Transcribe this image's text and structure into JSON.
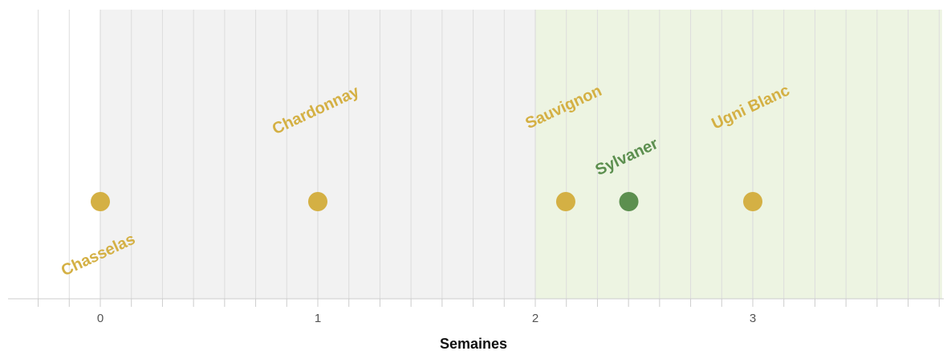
{
  "chart_data": {
    "type": "scatter",
    "xlabel": "Semaines",
    "xlim": [
      -0.42,
      3.87
    ],
    "x_ticks": [
      "0",
      "1",
      "2",
      "3"
    ],
    "grid": true,
    "bands": [
      {
        "from": 0,
        "to": 2,
        "color": "#f2f2f2"
      },
      {
        "from": 2,
        "to": 3.87,
        "color": "#edf4e2"
      }
    ],
    "colors": {
      "gold": "#d4b044",
      "green": "#5c8f4f",
      "grid": "#dddddd",
      "axis": "#cccccc"
    },
    "points": [
      {
        "label": "Chasselas",
        "x": 0.0,
        "color": "#d4b044",
        "label_side": "below"
      },
      {
        "label": "Chardonnay",
        "x": 1.0,
        "color": "#d4b044",
        "label_side": "above"
      },
      {
        "label": "Sauvignon",
        "x": 2.14,
        "color": "#d4b044",
        "label_side": "above"
      },
      {
        "label": "Sylvaner",
        "x": 2.43,
        "color": "#5c8f4f",
        "label_side": "above"
      },
      {
        "label": "Ugni Blanc",
        "x": 3.0,
        "color": "#d4b044",
        "label_side": "above"
      }
    ]
  }
}
